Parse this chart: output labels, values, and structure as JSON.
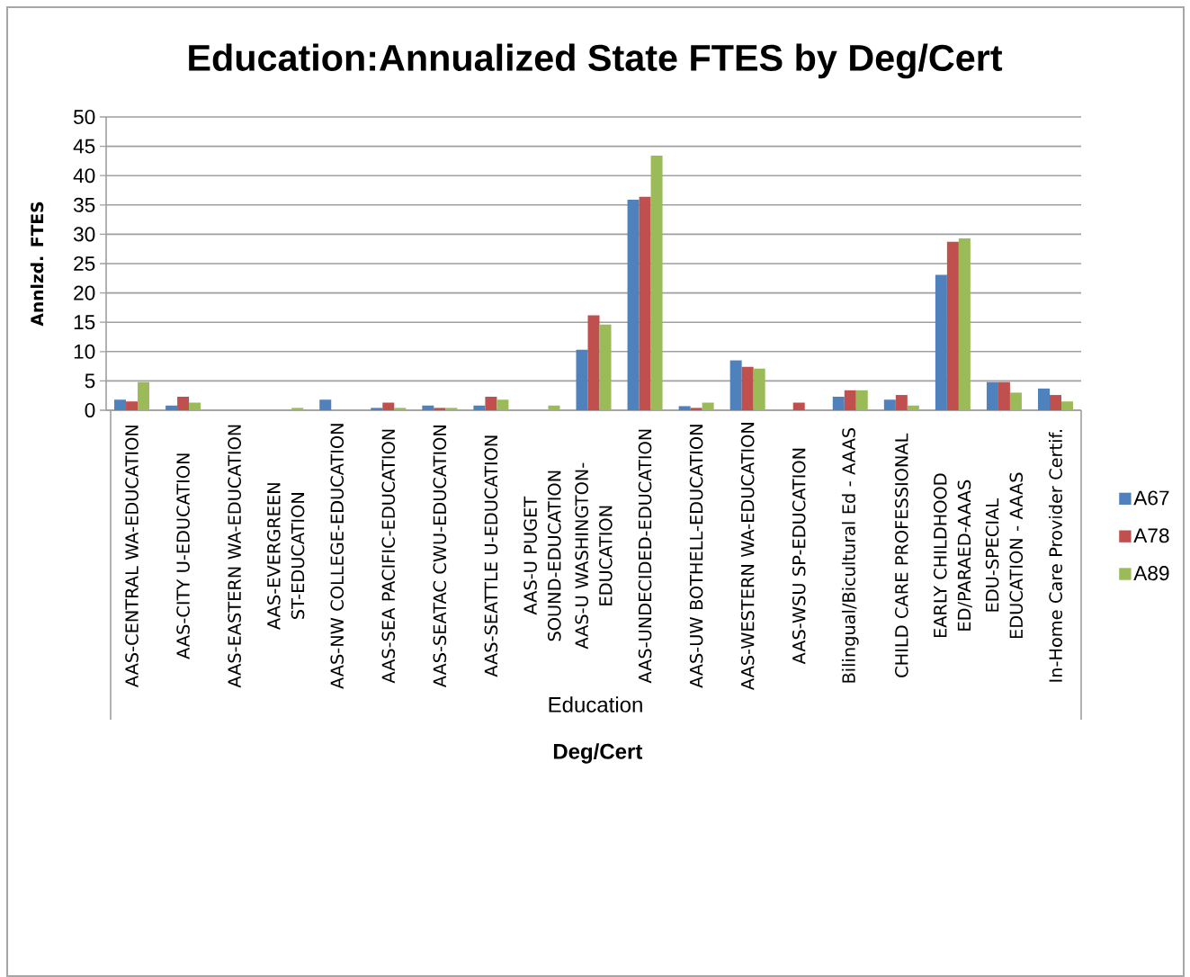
{
  "chart_data": {
    "type": "bar",
    "title": "Education:Annualized State FTES by Deg/Cert",
    "xlabel": "Deg/Cert",
    "ylabel": "Annlzd. FTES",
    "categories": [
      "AAS-CENTRAL WA-EDUCATION",
      "AAS-CITY U-EDUCATION",
      "AAS-EASTERN WA-EDUCATION",
      "AAS-EVERGREEN ST-EDUCATION",
      "AAS-NW COLLEGE-EDUCATION",
      "AAS-SEA PACIFIC-EDUCATION",
      "AAS-SEATAC CWU-EDUCATION",
      "AAS-SEATTLE U-EDUCATION",
      "AAS-U PUGET SOUND-EDUCATION",
      "AAS-U WASHINGTON-EDUCATION",
      "AAS-UNDECIDED-EDUCATION",
      "AAS-UW BOTHELL-EDUCATION",
      "AAS-WESTERN WA-EDUCATION",
      "AAS-WSU SP-EDUCATION",
      "Bilingual/Bicultural Ed - AAAS",
      "CHILD CARE PROFESSIONAL",
      "EARLY CHILDHOOD ED/PARAED-AAAS",
      "EDU-SPECIAL EDUCATION - AAAS",
      "In-Home Care Provider Certif."
    ],
    "series": [
      {
        "name": "A67",
        "color": "#4f81bd",
        "values": [
          1.8,
          0.8,
          null,
          null,
          1.8,
          0.4,
          0.8,
          0.8,
          null,
          10.3,
          35.9,
          0.7,
          8.5,
          null,
          2.3,
          1.8,
          23.1,
          4.8,
          3.7
        ]
      },
      {
        "name": "A78",
        "color": "#c0504d",
        "values": [
          1.5,
          2.3,
          null,
          null,
          null,
          1.3,
          0.4,
          2.3,
          null,
          16.2,
          36.4,
          0.4,
          7.4,
          1.3,
          3.4,
          2.6,
          28.7,
          4.8,
          2.6
        ]
      },
      {
        "name": "A89",
        "color": "#9bbb59",
        "values": [
          4.8,
          1.3,
          null,
          0.4,
          null,
          0.4,
          0.4,
          1.8,
          0.8,
          14.6,
          43.4,
          1.3,
          7.1,
          null,
          3.4,
          0.8,
          29.3,
          3.0,
          1.5
        ]
      }
    ],
    "ylim": [
      0,
      50
    ],
    "yticks": [
      0,
      5,
      10,
      15,
      20,
      25,
      30,
      35,
      40,
      45,
      50
    ],
    "grid": "y",
    "legend": "right",
    "annotations": [
      "Education"
    ]
  }
}
